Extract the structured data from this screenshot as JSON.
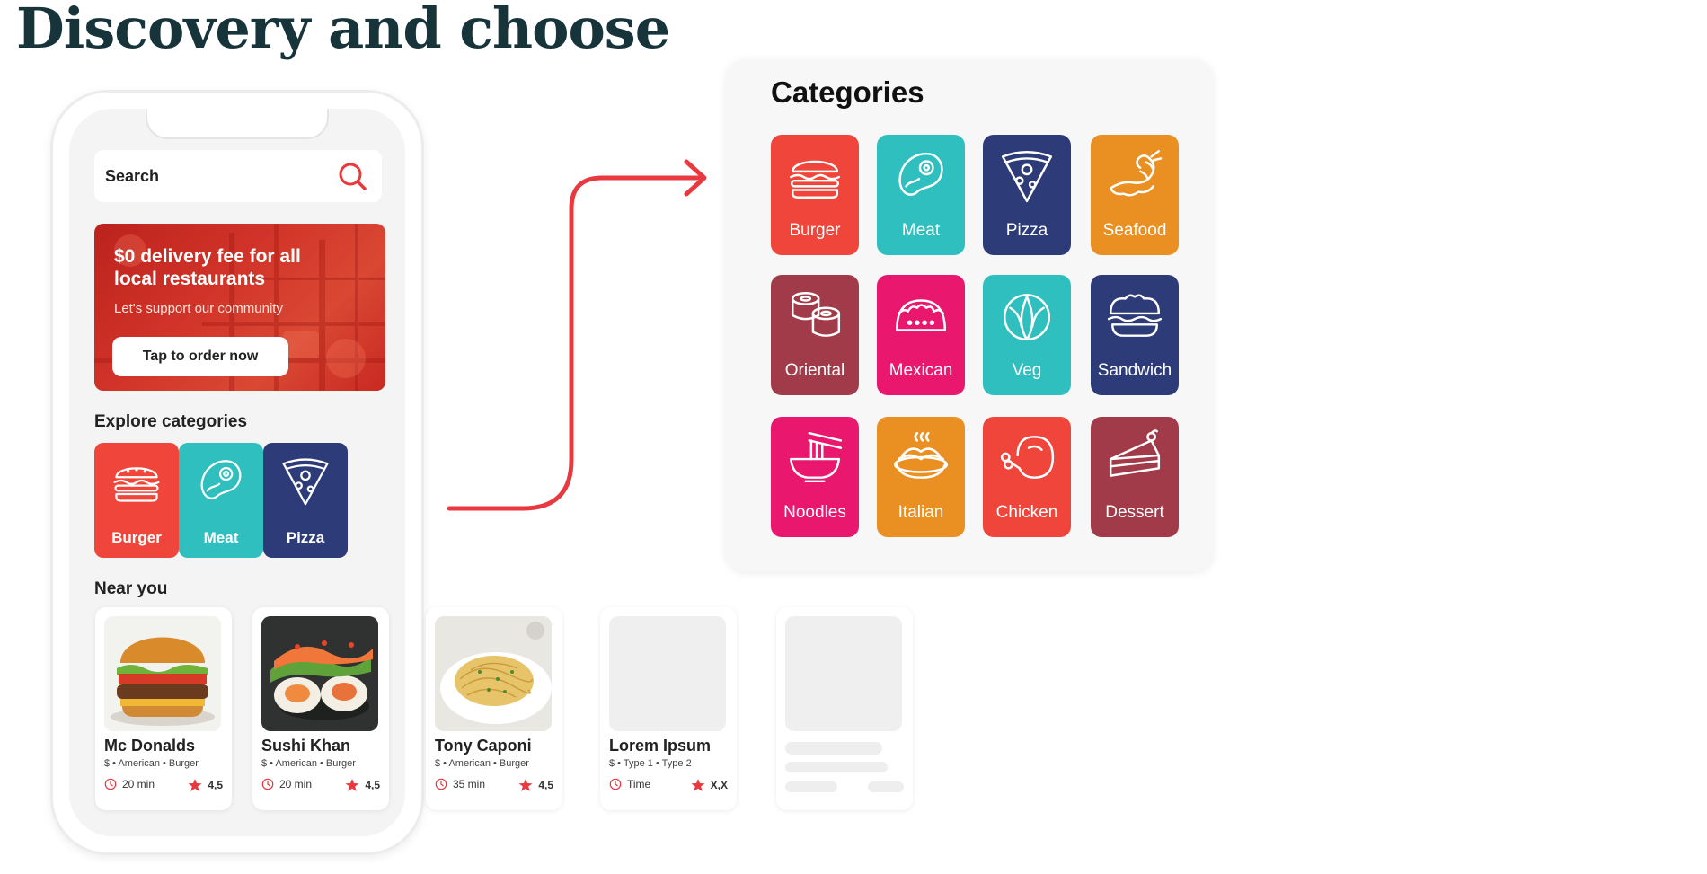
{
  "page": {
    "title": "Discovery and choose"
  },
  "colors": {
    "red": "#f0453a",
    "teal": "#2fbfbf",
    "navy": "#2d3c78",
    "orange": "#ea8f22",
    "maroon": "#a23b49",
    "pink": "#e9176e",
    "accent": "#e8393f"
  },
  "phone": {
    "search": {
      "placeholder": "Search",
      "icon": "search-icon"
    },
    "banner": {
      "title": "$0 delivery fee for all local restaurants",
      "subtitle": "Let's support our community",
      "cta": "Tap to order now"
    },
    "explore_title": "Explore categories",
    "explore_categories": [
      {
        "label": "Burger",
        "icon": "burger-icon"
      },
      {
        "label": "Meat",
        "icon": "meat-icon"
      },
      {
        "label": "Pizza",
        "icon": "pizza-icon"
      }
    ],
    "near_title": "Near you"
  },
  "restaurants": [
    {
      "name": "Mc Donalds",
      "meta": "$ • American • Burger",
      "time": "20 min",
      "rating": "4,5"
    },
    {
      "name": "Sushi Khan",
      "meta": "$ • American • Burger",
      "time": "20 min",
      "rating": "4,5"
    },
    {
      "name": "Tony Caponi",
      "meta": "$ • American • Burger",
      "time": "35 min",
      "rating": "4,5"
    },
    {
      "name": "Lorem Ipsum",
      "meta": "$ • Type 1 • Type 2",
      "time": "Time",
      "rating": "X,X"
    }
  ],
  "categories_panel": {
    "title": "Categories",
    "items": [
      {
        "label": "Burger",
        "icon": "burger-icon"
      },
      {
        "label": "Meat",
        "icon": "meat-icon"
      },
      {
        "label": "Pizza",
        "icon": "pizza-icon"
      },
      {
        "label": "Seafood",
        "icon": "shrimp-icon"
      },
      {
        "label": "Oriental",
        "icon": "sushi-icon"
      },
      {
        "label": "Mexican",
        "icon": "taco-icon"
      },
      {
        "label": "Veg",
        "icon": "cabbage-icon"
      },
      {
        "label": "Sandwich",
        "icon": "sandwich-icon"
      },
      {
        "label": "Noodles",
        "icon": "noodles-icon"
      },
      {
        "label": "Italian",
        "icon": "pasta-icon"
      },
      {
        "label": "Chicken",
        "icon": "chicken-icon"
      },
      {
        "label": "Dessert",
        "icon": "cake-icon"
      }
    ]
  }
}
